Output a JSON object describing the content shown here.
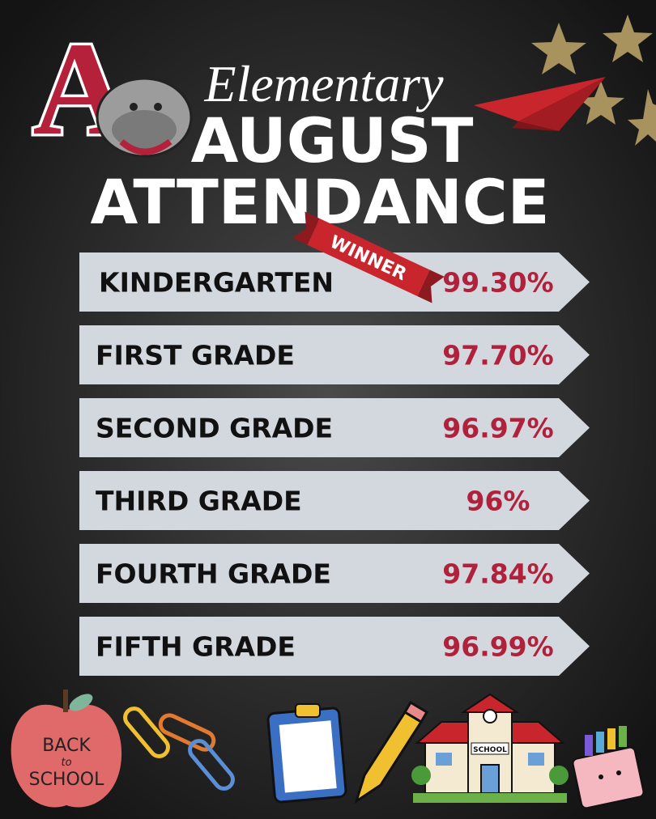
{
  "header": {
    "school_letter": "A",
    "subtitle": "Elementary",
    "title_line1": "AUGUST",
    "title_line2": "ATTENDANCE"
  },
  "badge": "WINNER",
  "rows": [
    {
      "grade": "KINDERGARTEN",
      "attendance": "99.30%"
    },
    {
      "grade": "FIRST GRADE",
      "attendance": "97.70%"
    },
    {
      "grade": "SECOND GRADE",
      "attendance": "96.97%"
    },
    {
      "grade": "THIRD GRADE",
      "attendance": "96%"
    },
    {
      "grade": "FOURTH GRADE",
      "attendance": "97.84%"
    },
    {
      "grade": "FIFTH GRADE",
      "attendance": "96.99%"
    }
  ],
  "footer": {
    "apple_line1": "BACK",
    "apple_line2": "to",
    "apple_line3": "SCHOOL",
    "building_sign": "SCHOOL"
  }
}
